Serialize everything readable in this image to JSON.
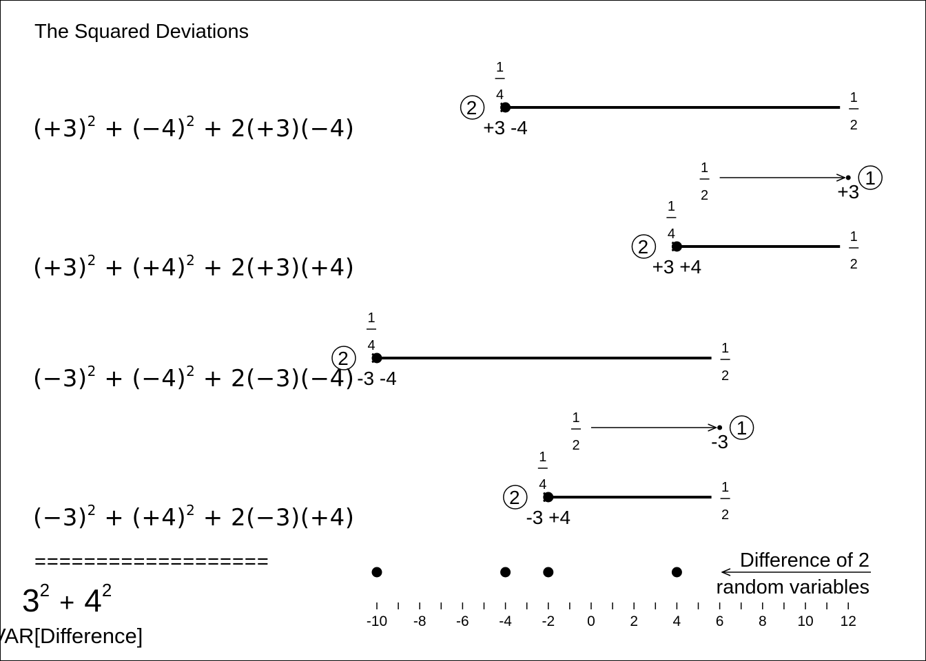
{
  "title": "The Squared Deviations",
  "rows": [
    {
      "a": "(+3)",
      "b": "(−4)",
      "c": "2(+3)(−4)",
      "exp": "2"
    },
    {
      "a": "(+3)",
      "b": "(+4)",
      "c": "2(+3)(+4)",
      "exp": "2"
    },
    {
      "a": "(−3)",
      "b": "(−4)",
      "c": "2(−3)(−4)",
      "exp": "2"
    },
    {
      "a": "(−3)",
      "b": "(+4)",
      "c": "2(−3)(+4)",
      "exp": "2"
    }
  ],
  "plus_sign": "+",
  "separator": "===================",
  "summary": {
    "base1": "3",
    "base2": "4",
    "exp": "2",
    "plus": "+"
  },
  "var_label": "VAR[Difference]",
  "legend": {
    "line1": "Difference of 2",
    "line2": "random variables"
  },
  "arrows": [
    {
      "from": 12,
      "to": -4,
      "kind": "thick",
      "circle": "2",
      "label": "+3 -4",
      "start_frac": [
        "1",
        "2"
      ],
      "end_frac": [
        "1",
        "4"
      ]
    },
    {
      "from": 6,
      "to": 12,
      "kind": "thin",
      "circle": "1",
      "label": "+3",
      "start_frac": [
        "1",
        "2"
      ]
    },
    {
      "from": 12,
      "to": 4,
      "kind": "thick",
      "circle": "2",
      "label": "+3 +4",
      "start_frac": [
        "1",
        "2"
      ],
      "end_frac": [
        "1",
        "4"
      ]
    },
    {
      "from": 6,
      "to": -10,
      "kind": "thick",
      "circle": "2",
      "label": "-3 -4",
      "start_frac": [
        "1",
        "2"
      ],
      "end_frac": [
        "1",
        "4"
      ]
    },
    {
      "from": 0,
      "to": 6,
      "kind": "thin",
      "circle": "1",
      "label": "-3",
      "start_frac": [
        "1",
        "2"
      ]
    },
    {
      "from": 6,
      "to": -2,
      "kind": "thick",
      "circle": "2",
      "label": "-3 +4",
      "start_frac": [
        "1",
        "2"
      ],
      "end_frac": [
        "1",
        "4"
      ]
    }
  ],
  "axis": {
    "min": -10,
    "max": 12,
    "major_step": 2,
    "minor_step": 1,
    "tick_labels": [
      "-10",
      "-8",
      "-6",
      "-4",
      "-2",
      "0",
      "2",
      "4",
      "6",
      "8",
      "10",
      "12"
    ]
  },
  "outcome_points": [
    -10,
    -4,
    -2,
    4
  ]
}
